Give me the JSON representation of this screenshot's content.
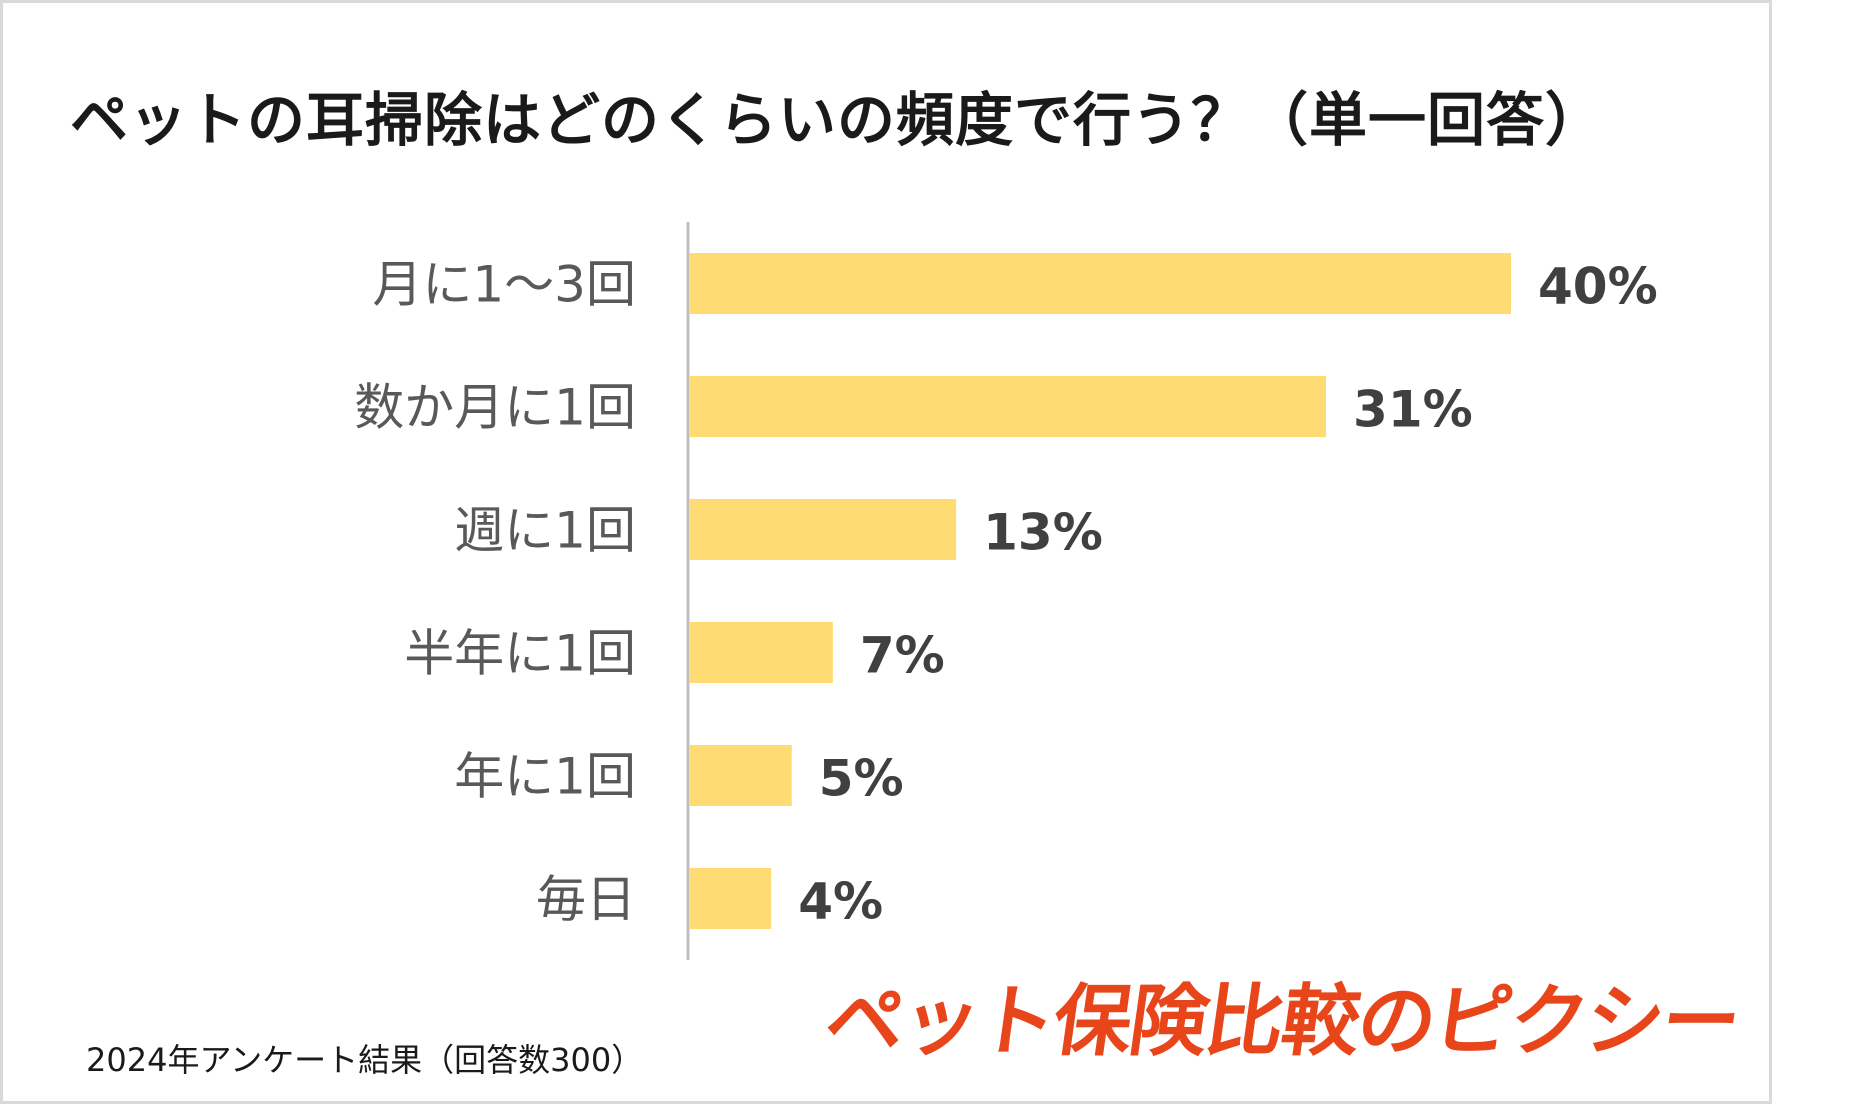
{
  "title": "ペットの耳掃除はどのくらいの頻度で行う？（単一回答）",
  "footnote": "2024年アンケート結果（回答数300）",
  "brand": {
    "logo_text": "ペット保険比較のピクシー",
    "color": "#e8451b"
  },
  "colors": {
    "bar": "#ffdc73",
    "axis": "#bfbfbf",
    "category_text": "#595959",
    "value_text": "#404040"
  },
  "chart_data": {
    "type": "bar",
    "orientation": "horizontal",
    "title": "ペットの耳掃除はどのくらいの頻度で行う？（単一回答）",
    "categories": [
      "月に1〜3回",
      "数か月に1回",
      "週に1回",
      "半年に1回",
      "年に1回",
      "毎日"
    ],
    "values": [
      40,
      31,
      13,
      7,
      5,
      4
    ],
    "value_labels": [
      "40%",
      "31%",
      "13%",
      "7%",
      "5%",
      "4%"
    ],
    "unit": "%",
    "xlim": [
      0,
      40
    ],
    "grid": false,
    "legend": "none"
  }
}
